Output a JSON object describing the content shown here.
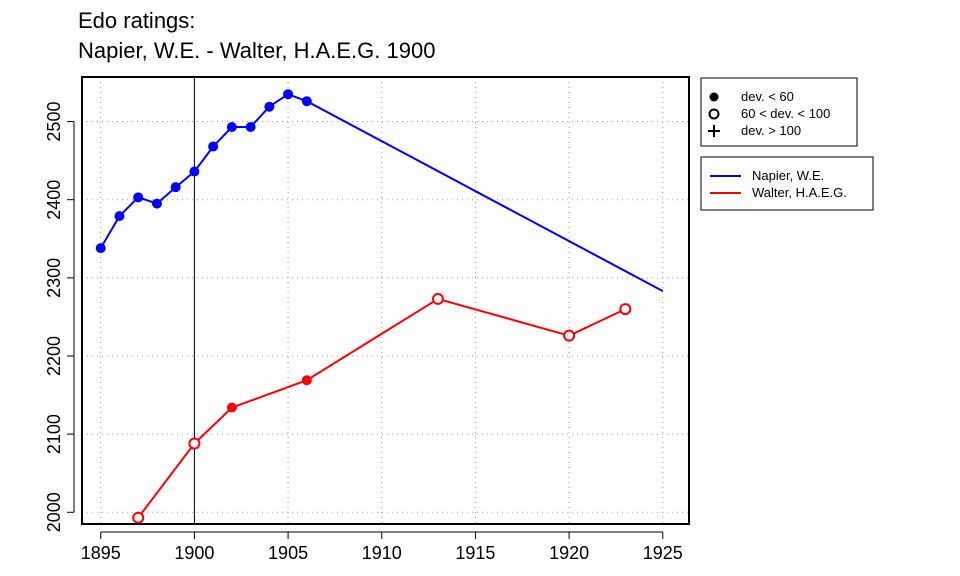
{
  "chart_data": {
    "type": "line",
    "title_line1": "Edo ratings:",
    "title_line2": "Napier, W.E. - Walter, H.A.E.G. 1900",
    "xlabel": "",
    "ylabel": "",
    "xlim": [
      1894,
      1926.4
    ],
    "ylim": [
      1985,
      2557
    ],
    "x_ticks": [
      1895,
      1900,
      1905,
      1910,
      1915,
      1920,
      1925
    ],
    "y_ticks": [
      2000,
      2100,
      2200,
      2300,
      2400,
      2500
    ],
    "grid": true,
    "marker_year": 1900,
    "series": [
      {
        "name": "Napier, W.E.",
        "color": "#0000ff",
        "points": [
          {
            "x": 1895,
            "y": 2338,
            "marker": "filled"
          },
          {
            "x": 1896,
            "y": 2379,
            "marker": "filled"
          },
          {
            "x": 1897,
            "y": 2403,
            "marker": "filled"
          },
          {
            "x": 1898,
            "y": 2395,
            "marker": "filled"
          },
          {
            "x": 1899,
            "y": 2416,
            "marker": "filled"
          },
          {
            "x": 1900,
            "y": 2436,
            "marker": "filled"
          },
          {
            "x": 1901,
            "y": 2468,
            "marker": "filled"
          },
          {
            "x": 1902,
            "y": 2493,
            "marker": "filled"
          },
          {
            "x": 1903,
            "y": 2493,
            "marker": "filled"
          },
          {
            "x": 1904,
            "y": 2519,
            "marker": "filled"
          },
          {
            "x": 1905,
            "y": 2535,
            "marker": "filled"
          },
          {
            "x": 1906,
            "y": 2526,
            "marker": "filled"
          },
          {
            "x": 1925,
            "y": 2283,
            "marker": "none"
          }
        ]
      },
      {
        "name": "Walter, H.A.E.G.",
        "color": "#ff0000",
        "points": [
          {
            "x": 1897,
            "y": 1993,
            "marker": "open"
          },
          {
            "x": 1900,
            "y": 2088,
            "marker": "open"
          },
          {
            "x": 1902,
            "y": 2134,
            "marker": "filled"
          },
          {
            "x": 1906,
            "y": 2169,
            "marker": "filled"
          },
          {
            "x": 1913,
            "y": 2273,
            "marker": "open"
          },
          {
            "x": 1920,
            "y": 2226,
            "marker": "open"
          },
          {
            "x": 1923,
            "y": 2260,
            "marker": "open"
          }
        ]
      }
    ],
    "marker_legend": [
      {
        "symbol": "filled",
        "label": "dev. < 60"
      },
      {
        "symbol": "open",
        "label": "60 < dev. < 100"
      },
      {
        "symbol": "plus",
        "label": "dev. > 100"
      }
    ]
  }
}
